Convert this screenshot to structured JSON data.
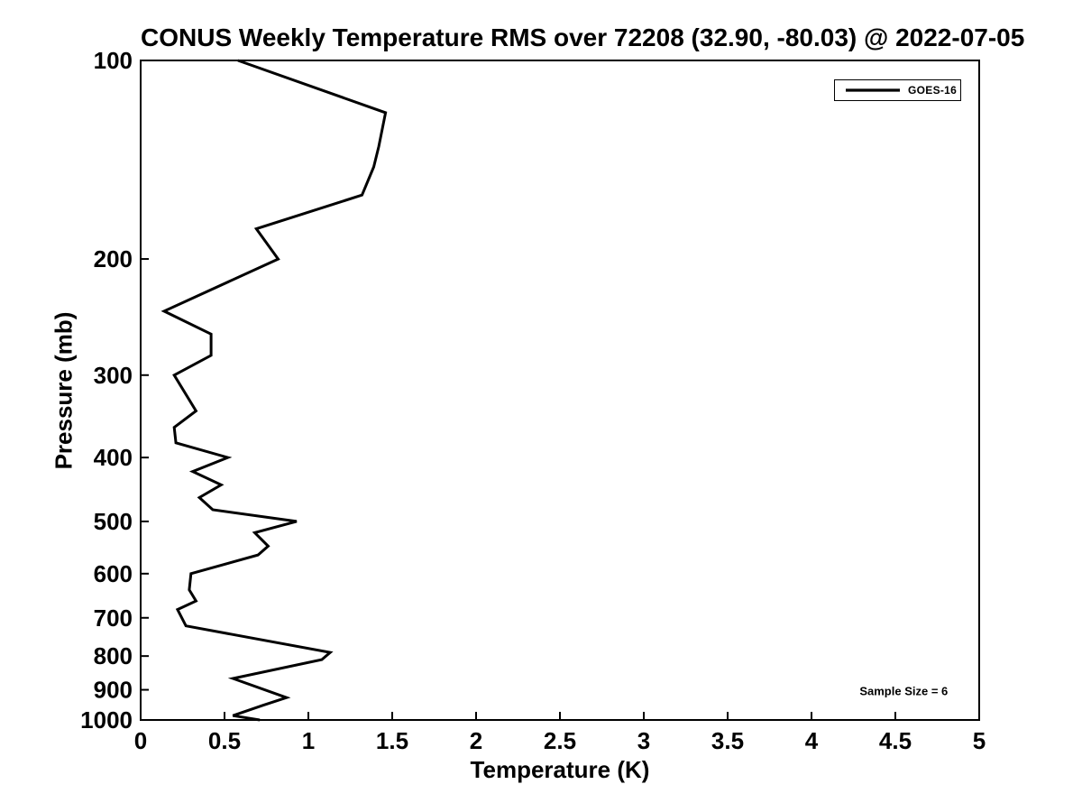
{
  "chart_data": {
    "type": "line",
    "title": "CONUS Weekly Temperature RMS over 72208 (32.90, -80.03) @ 2022-07-05",
    "xlabel": "Temperature (K)",
    "ylabel": "Pressure (mb)",
    "xlim": [
      0,
      5
    ],
    "ylim": [
      100,
      1000
    ],
    "yscale": "log",
    "y_inverted": true,
    "grid": false,
    "frame": "box",
    "xticks": [
      0,
      0.5,
      1,
      1.5,
      2,
      2.5,
      3,
      3.5,
      4,
      4.5,
      5
    ],
    "yticks": [
      100,
      200,
      300,
      400,
      500,
      600,
      700,
      800,
      900,
      1000
    ],
    "line_color": "#000000",
    "background_color": "#ffffff",
    "legend_position": "upper right",
    "series": [
      {
        "name": "GOES-16",
        "color": "#000000",
        "points_format": "[temperature_K, pressure_mb]",
        "points": [
          [
            0.58,
            100
          ],
          [
            1.46,
            120
          ],
          [
            1.42,
            135
          ],
          [
            1.39,
            145
          ],
          [
            1.32,
            160
          ],
          [
            0.69,
            180
          ],
          [
            0.82,
            200
          ],
          [
            0.14,
            240
          ],
          [
            0.42,
            260
          ],
          [
            0.42,
            280
          ],
          [
            0.2,
            300
          ],
          [
            0.33,
            340
          ],
          [
            0.2,
            360
          ],
          [
            0.21,
            380
          ],
          [
            0.52,
            400
          ],
          [
            0.31,
            420
          ],
          [
            0.48,
            440
          ],
          [
            0.35,
            460
          ],
          [
            0.43,
            480
          ],
          [
            0.93,
            500
          ],
          [
            0.68,
            520
          ],
          [
            0.76,
            545
          ],
          [
            0.7,
            562
          ],
          [
            0.3,
            600
          ],
          [
            0.29,
            635
          ],
          [
            0.33,
            660
          ],
          [
            0.22,
            680
          ],
          [
            0.27,
            720
          ],
          [
            1.13,
            790
          ],
          [
            1.08,
            810
          ],
          [
            0.55,
            865
          ],
          [
            0.87,
            925
          ],
          [
            0.73,
            950
          ],
          [
            0.55,
            985
          ],
          [
            0.71,
            1000
          ]
        ]
      }
    ],
    "annotations": [
      {
        "text": "Sample Size = 6",
        "x": 4.55,
        "pressure": 904
      }
    ]
  }
}
